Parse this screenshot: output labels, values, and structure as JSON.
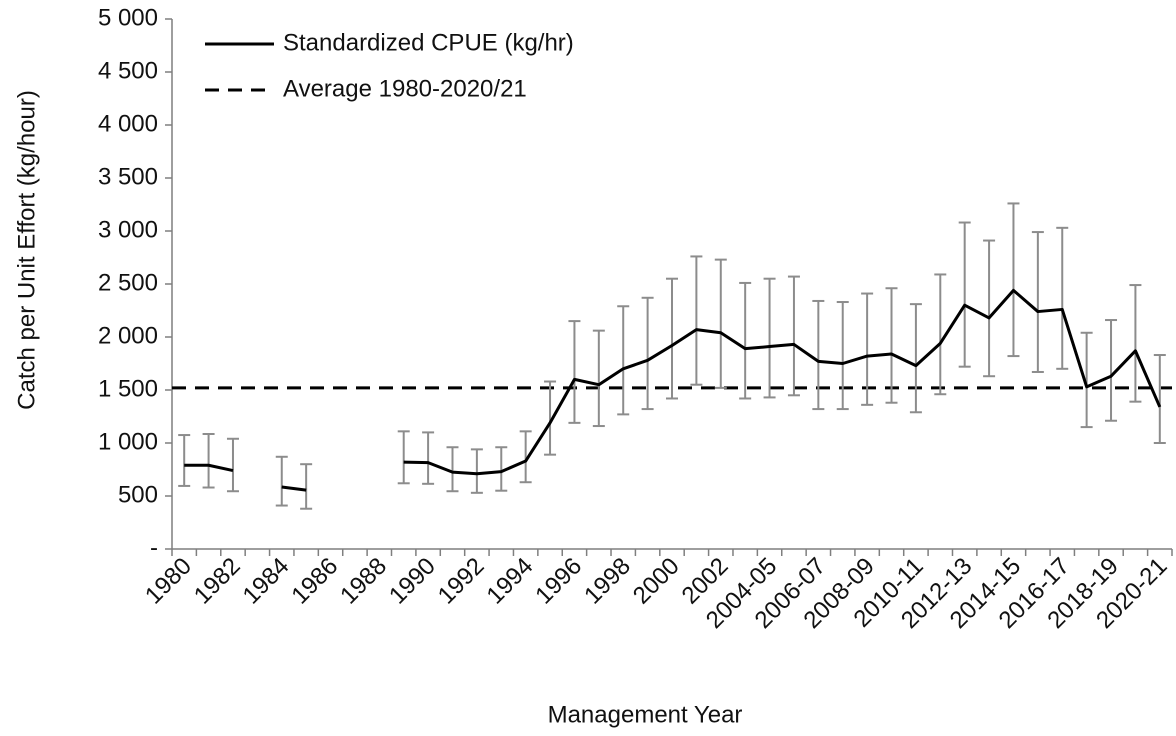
{
  "chart_data": {
    "type": "line",
    "y_axis_label": "Catch per Unit Effort (kg/hour)",
    "x_axis_label": "Management Year",
    "categories": [
      "1980",
      null,
      "1982",
      null,
      "1984",
      null,
      "1986",
      null,
      "1988",
      null,
      "1990",
      null,
      "1992",
      null,
      "1994",
      null,
      "1996",
      null,
      "1998",
      null,
      "2000",
      null,
      "2002",
      null,
      "2004-05",
      null,
      "2006-07",
      null,
      "2008-09",
      null,
      "2010-11",
      null,
      "2012-13",
      null,
      "2014-15",
      null,
      "2016-17",
      null,
      "2018-19",
      null,
      "2020-21"
    ],
    "series": [
      {
        "name": "Standardized CPUE (kg/hr)",
        "color": "#000000",
        "values": [
          790,
          790,
          740,
          null,
          585,
          555,
          null,
          null,
          null,
          820,
          815,
          725,
          710,
          730,
          830,
          1190,
          1600,
          1550,
          1700,
          1780,
          1920,
          2070,
          2040,
          1890,
          1910,
          1930,
          1770,
          1750,
          1820,
          1840,
          1730,
          1940,
          2300,
          2180,
          2440,
          2240,
          2260,
          1530,
          1630,
          1870,
          1340
        ],
        "upper": [
          1075,
          1085,
          1040,
          null,
          870,
          800,
          null,
          null,
          null,
          1110,
          1100,
          960,
          940,
          960,
          1110,
          1580,
          2150,
          2060,
          2290,
          2370,
          2550,
          2760,
          2730,
          2510,
          2550,
          2570,
          2340,
          2330,
          2410,
          2460,
          2310,
          2590,
          3080,
          2910,
          3260,
          2990,
          3030,
          2040,
          2160,
          2490,
          1830
        ],
        "lower": [
          595,
          580,
          545,
          null,
          410,
          380,
          null,
          null,
          null,
          620,
          615,
          545,
          530,
          550,
          630,
          890,
          1190,
          1160,
          1270,
          1320,
          1420,
          1550,
          1520,
          1420,
          1430,
          1450,
          1320,
          1320,
          1360,
          1380,
          1290,
          1460,
          1720,
          1630,
          1820,
          1670,
          1700,
          1150,
          1210,
          1390,
          1000
        ],
        "error_color": "#8c8c8c"
      }
    ],
    "reference_lines": [
      {
        "name": "Average 1980-2020/21",
        "value": 1520,
        "color": "#000000",
        "style": "dashed"
      }
    ],
    "ylim": [
      0,
      5000
    ],
    "yticks": [
      {
        "value": 0,
        "label": "-"
      },
      {
        "value": 500,
        "label": "500"
      },
      {
        "value": 1000,
        "label": "1 000"
      },
      {
        "value": 1500,
        "label": "1 500"
      },
      {
        "value": 2000,
        "label": "2 000"
      },
      {
        "value": 2500,
        "label": "2 500"
      },
      {
        "value": 3000,
        "label": "3 000"
      },
      {
        "value": 3500,
        "label": "3 500"
      },
      {
        "value": 4000,
        "label": "4 000"
      },
      {
        "value": 4500,
        "label": "4 500"
      },
      {
        "value": 5000,
        "label": "5 000"
      }
    ],
    "legend": "top-left"
  }
}
